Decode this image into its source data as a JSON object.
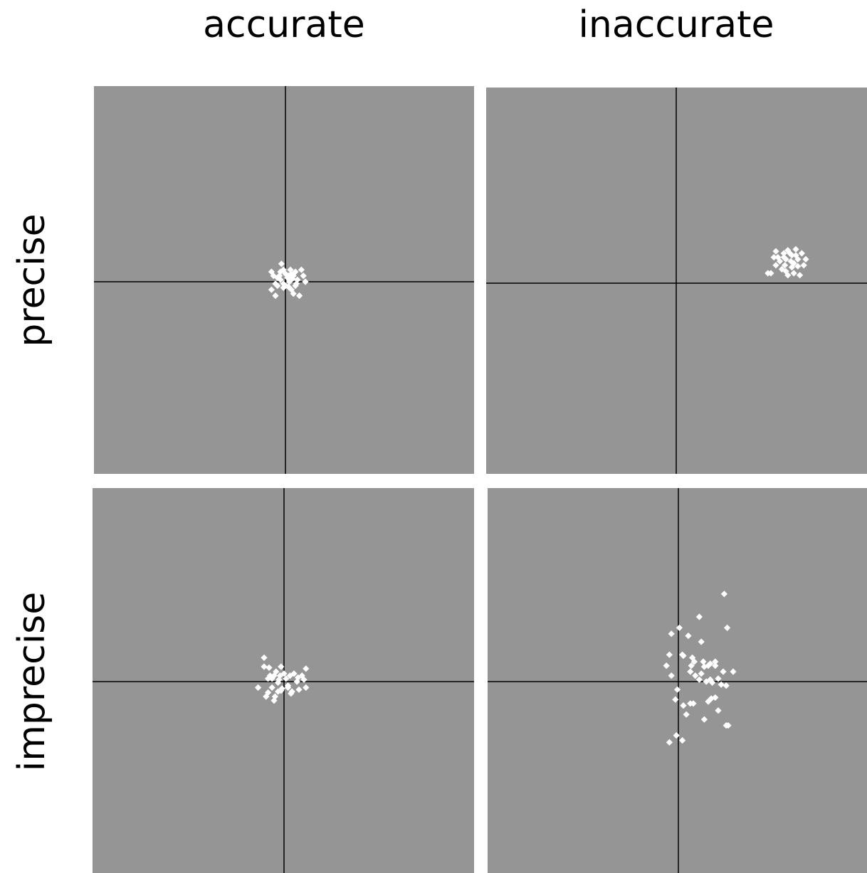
{
  "labels": {
    "col_accurate": "accurate",
    "col_inaccurate": "inaccurate",
    "row_precise": "precise",
    "row_imprecise": "imprecise"
  },
  "colors": {
    "panel_background": "#959595",
    "crosshair": "#000000",
    "marker": "#ffffff",
    "page_background": "#ffffff"
  },
  "panels": [
    {
      "id": "precise-accurate",
      "row": "precise",
      "col": "accurate",
      "points": [
        [
          -0.05,
          0.02
        ],
        [
          0.0,
          0.08
        ],
        [
          0.05,
          0.03
        ],
        [
          -0.08,
          -0.04
        ],
        [
          0.03,
          -0.05
        ],
        [
          -0.02,
          0.12
        ],
        [
          0.1,
          0.1
        ],
        [
          0.12,
          0.02
        ],
        [
          -0.1,
          -0.02
        ],
        [
          -0.14,
          -0.08
        ],
        [
          0.06,
          -0.08
        ],
        [
          -0.04,
          0.18
        ],
        [
          0.02,
          0.04
        ],
        [
          0.08,
          0.06
        ],
        [
          0.11,
          -0.02
        ],
        [
          -0.12,
          0.06
        ],
        [
          0.16,
          0.12
        ],
        [
          -0.1,
          -0.14
        ],
        [
          0.14,
          -0.14
        ],
        [
          0.2,
          0.0
        ],
        [
          0.04,
          0.0
        ],
        [
          -0.06,
          0.06
        ],
        [
          -0.02,
          -0.02
        ],
        [
          0.07,
          0.03
        ],
        [
          0.0,
          -0.04
        ],
        [
          0.1,
          -0.04
        ],
        [
          -0.05,
          0.1
        ],
        [
          0.05,
          0.12
        ],
        [
          -0.08,
          0.04
        ],
        [
          -0.14,
          0.1
        ],
        [
          0.18,
          0.06
        ],
        [
          0.06,
          0.08
        ],
        [
          0.08,
          -0.12
        ],
        [
          -0.02,
          -0.06
        ],
        [
          0.03,
          0.06
        ]
      ]
    },
    {
      "id": "precise-inaccurate",
      "row": "precise",
      "col": "inaccurate",
      "points": [
        [
          1.12,
          0.33
        ],
        [
          1.02,
          0.26
        ],
        [
          1.15,
          0.22
        ],
        [
          1.08,
          0.3
        ],
        [
          1.2,
          0.28
        ],
        [
          1.1,
          0.24
        ],
        [
          1.0,
          0.18
        ],
        [
          1.06,
          0.14
        ],
        [
          1.16,
          0.16
        ],
        [
          1.22,
          0.24
        ],
        [
          1.26,
          0.3
        ],
        [
          1.18,
          0.1
        ],
        [
          0.95,
          0.1
        ],
        [
          0.92,
          0.1
        ],
        [
          1.12,
          0.08
        ],
        [
          1.24,
          0.08
        ],
        [
          1.3,
          0.24
        ],
        [
          1.14,
          0.3
        ],
        [
          1.04,
          0.22
        ],
        [
          1.18,
          0.2
        ],
        [
          0.98,
          0.26
        ],
        [
          1.09,
          0.18
        ],
        [
          1.1,
          0.12
        ],
        [
          1.22,
          0.17
        ],
        [
          1.2,
          0.34
        ],
        [
          1.0,
          0.32
        ],
        [
          1.28,
          0.18
        ],
        [
          1.08,
          0.26
        ],
        [
          1.16,
          0.28
        ]
      ]
    },
    {
      "id": "imprecise-accurate",
      "row": "imprecise",
      "col": "accurate",
      "points": [
        [
          -0.2,
          0.24
        ],
        [
          -0.2,
          0.15
        ],
        [
          -0.15,
          0.14
        ],
        [
          -0.08,
          0.1
        ],
        [
          -0.05,
          0.02
        ],
        [
          -0.14,
          0.06
        ],
        [
          -0.12,
          0.03
        ],
        [
          -0.26,
          -0.06
        ],
        [
          -0.12,
          -0.06
        ],
        [
          -0.16,
          -0.11
        ],
        [
          -0.18,
          -0.15
        ],
        [
          -0.1,
          -0.19
        ],
        [
          -0.06,
          -0.1
        ],
        [
          -0.02,
          -0.07
        ],
        [
          0.0,
          0.08
        ],
        [
          0.06,
          0.06
        ],
        [
          0.1,
          0.08
        ],
        [
          0.14,
          0.04
        ],
        [
          0.18,
          0.06
        ],
        [
          0.2,
          0.02
        ],
        [
          0.22,
          0.13
        ],
        [
          0.22,
          -0.06
        ],
        [
          0.15,
          -0.08
        ],
        [
          0.08,
          -0.1
        ],
        [
          0.07,
          -0.12
        ],
        [
          0.04,
          -0.06
        ],
        [
          -0.03,
          -0.09
        ],
        [
          -0.04,
          0.06
        ],
        [
          -0.06,
          -0.01
        ],
        [
          -0.1,
          0.06
        ],
        [
          -0.03,
          0.15
        ],
        [
          0.02,
          0.03
        ],
        [
          0.04,
          -0.04
        ],
        [
          -0.16,
          0.03
        ],
        [
          -0.09,
          -0.15
        ],
        [
          0.13,
          0.0
        ]
      ]
    },
    {
      "id": "imprecise-inaccurate",
      "row": "imprecise",
      "col": "inaccurate",
      "points": [
        [
          0.46,
          0.88
        ],
        [
          0.21,
          0.65
        ],
        [
          0.49,
          0.54
        ],
        [
          0.01,
          0.54
        ],
        [
          -0.07,
          0.48
        ],
        [
          0.1,
          0.46
        ],
        [
          0.23,
          0.4
        ],
        [
          -0.09,
          0.27
        ],
        [
          0.04,
          0.27
        ],
        [
          0.05,
          0.26
        ],
        [
          0.14,
          0.24
        ],
        [
          0.16,
          0.2
        ],
        [
          0.25,
          0.2
        ],
        [
          0.37,
          0.2
        ],
        [
          0.13,
          0.16
        ],
        [
          0.26,
          0.15
        ],
        [
          0.3,
          0.16
        ],
        [
          0.37,
          0.16
        ],
        [
          0.32,
          0.18
        ],
        [
          0.12,
          0.1
        ],
        [
          0.17,
          0.06
        ],
        [
          0.23,
          0.08
        ],
        [
          -0.12,
          0.16
        ],
        [
          -0.07,
          0.06
        ],
        [
          0.21,
          0.02
        ],
        [
          0.32,
          0.02
        ],
        [
          0.45,
          0.1
        ],
        [
          0.55,
          0.1
        ],
        [
          0.4,
          0.03
        ],
        [
          0.28,
          0.0
        ],
        [
          0.34,
          -0.01
        ],
        [
          0.43,
          -0.03
        ],
        [
          0.48,
          -0.04
        ],
        [
          -0.01,
          -0.08
        ],
        [
          -0.03,
          -0.18
        ],
        [
          0.05,
          -0.24
        ],
        [
          0.12,
          -0.22
        ],
        [
          0.15,
          -0.22
        ],
        [
          0.33,
          -0.17
        ],
        [
          0.37,
          -0.16
        ],
        [
          0.3,
          -0.2
        ],
        [
          0.4,
          -0.29
        ],
        [
          0.08,
          -0.33
        ],
        [
          0.26,
          -0.38
        ],
        [
          0.48,
          -0.44
        ],
        [
          0.5,
          -0.44
        ],
        [
          -0.09,
          -0.61
        ],
        [
          0.04,
          -0.59
        ],
        [
          -0.02,
          -0.54
        ]
      ]
    }
  ]
}
